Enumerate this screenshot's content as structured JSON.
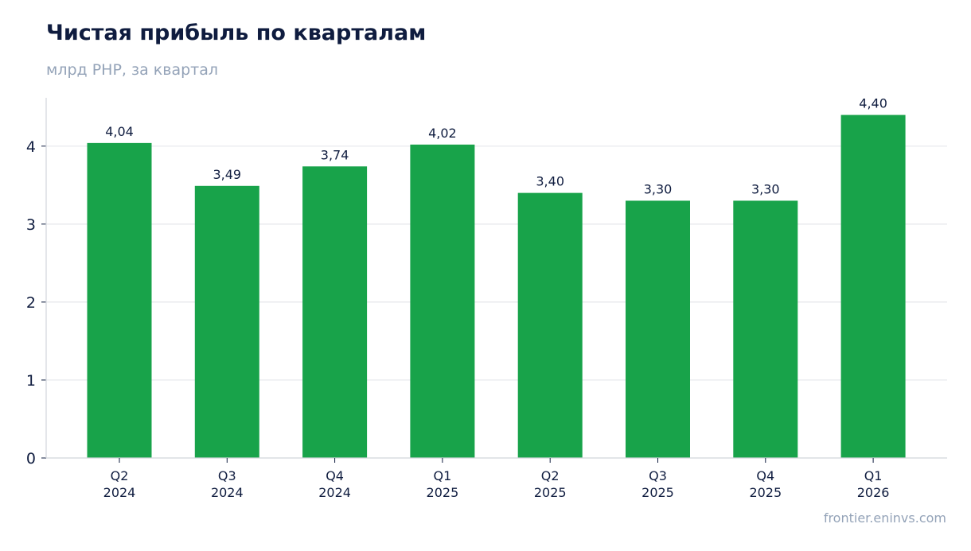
{
  "header": {
    "title": "Чистая прибыль по кварталам",
    "subtitle": "млрд PHP, за квартал"
  },
  "footer": {
    "source": "frontier.eninvs.com"
  },
  "colors": {
    "bar": "#18a34a",
    "grid": "#e5e7eb",
    "axis": "#d1d5db",
    "text": "#0f1c3f",
    "muted": "#94a3b8"
  },
  "chart_data": {
    "type": "bar",
    "title": "Чистая прибыль по кварталам",
    "subtitle": "млрд PHP, за квартал",
    "categories": [
      [
        "Q2",
        "2024"
      ],
      [
        "Q3",
        "2024"
      ],
      [
        "Q4",
        "2024"
      ],
      [
        "Q1",
        "2025"
      ],
      [
        "Q2",
        "2025"
      ],
      [
        "Q3",
        "2025"
      ],
      [
        "Q4",
        "2025"
      ],
      [
        "Q1",
        "2026"
      ]
    ],
    "values": [
      4.04,
      3.49,
      3.74,
      4.02,
      3.4,
      3.3,
      3.3,
      4.4
    ],
    "value_labels": [
      "4,04",
      "3,49",
      "3,74",
      "4,02",
      "3,40",
      "3,30",
      "3,30",
      "4,40"
    ],
    "yticks": [
      0,
      1,
      2,
      3,
      4
    ],
    "ylim": [
      0,
      4.62
    ],
    "grid": true,
    "xlabel": "",
    "ylabel": ""
  }
}
